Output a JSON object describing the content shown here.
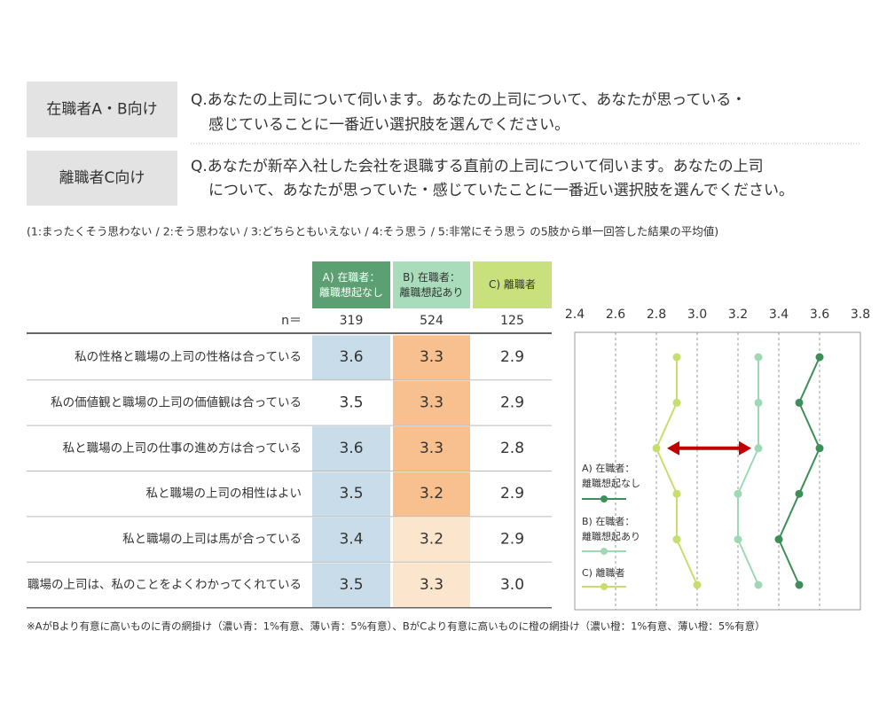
{
  "questions": [
    {
      "label": "在職者A・B向け",
      "lines": [
        "Q.あなたの上司について伺います。あなたの上司について、あなたが思っている・",
        "感じていることに一番近い選択肢を選んでください。"
      ]
    },
    {
      "label": "離職者C向け",
      "lines": [
        "Q.あなたが新卒入社した会社を退職する直前の上司について伺います。あなたの上司",
        "について、あなたが思っていた・感じていたことに一番近い選択肢を選んでください。"
      ]
    }
  ],
  "scale_note": "(1:まったくそう思わない / 2:そう思わない / 3:どちらともいえない / 4:そう思う / 5:非常にそう思う の5肢から単一回答した結果の平均値)",
  "table": {
    "n_label": "n＝",
    "n": [
      319,
      524,
      125
    ],
    "header_colors": [
      "#5b9f72",
      "#a9dcbb",
      "#c8e17c"
    ],
    "fills": [
      [
        "#c9dcea",
        "#f7c08e",
        "#ffffff"
      ],
      [
        "#ffffff",
        "#f7c08e",
        "#ffffff"
      ],
      [
        "#c9dcea",
        "#f7c08e",
        "#ffffff"
      ],
      [
        "#c9dcea",
        "#f7c08e",
        "#ffffff"
      ],
      [
        "#c9dcea",
        "#fbe5cd",
        "#ffffff"
      ],
      [
        "#c9dcea",
        "#fbe5cd",
        "#ffffff"
      ]
    ]
  },
  "chart_data": {
    "type": "line",
    "orientation": "horizontal",
    "categories": [
      "私の性格と職場の上司の性格は合っている",
      "私の価値観と職場の上司の価値観は合っている",
      "私と職場の上司の仕事の進め方は合っている",
      "私と職場の上司の相性はよい",
      "私と職場の上司は馬が合っている",
      "職場の上司は、私のことをよくわかってくれている"
    ],
    "series": [
      {
        "name": "A) 在職者：\n離職想起なし",
        "color": "#3e8e5a",
        "values": [
          3.6,
          3.5,
          3.6,
          3.5,
          3.4,
          3.5
        ],
        "value_labels": [
          "3.6",
          "3.5",
          "3.6",
          "3.5",
          "3.4",
          "3.5"
        ]
      },
      {
        "name": "B) 在職者：\n離職想起あり",
        "color": "#9fd8b5",
        "values": [
          3.3,
          3.3,
          3.3,
          3.2,
          3.2,
          3.3
        ],
        "value_labels": [
          "3.3",
          "3.3",
          "3.3",
          "3.2",
          "3.2",
          "3.3"
        ]
      },
      {
        "name": "C) 離職者",
        "color": "#c6df6c",
        "values": [
          2.9,
          2.9,
          2.8,
          2.9,
          2.9,
          3.0
        ],
        "value_labels": [
          "2.9",
          "2.9",
          "2.8",
          "2.9",
          "2.9",
          "3.0"
        ]
      }
    ],
    "xlim": [
      2.4,
      3.8
    ],
    "xticks": [
      2.4,
      2.6,
      2.8,
      {
        "value": 3,
        "label": "3.0"
      },
      3.2,
      3.4,
      3.6,
      3.8
    ],
    "grid": true,
    "legend": "left"
  },
  "footnote": "※AがBより有意に高いものに青の網掛け（濃い青：1%有意、薄い青：5%有意）、BがCより有意に高いものに橙の網掛け（濃い橙：1%有意、薄い橙：5%有意）"
}
